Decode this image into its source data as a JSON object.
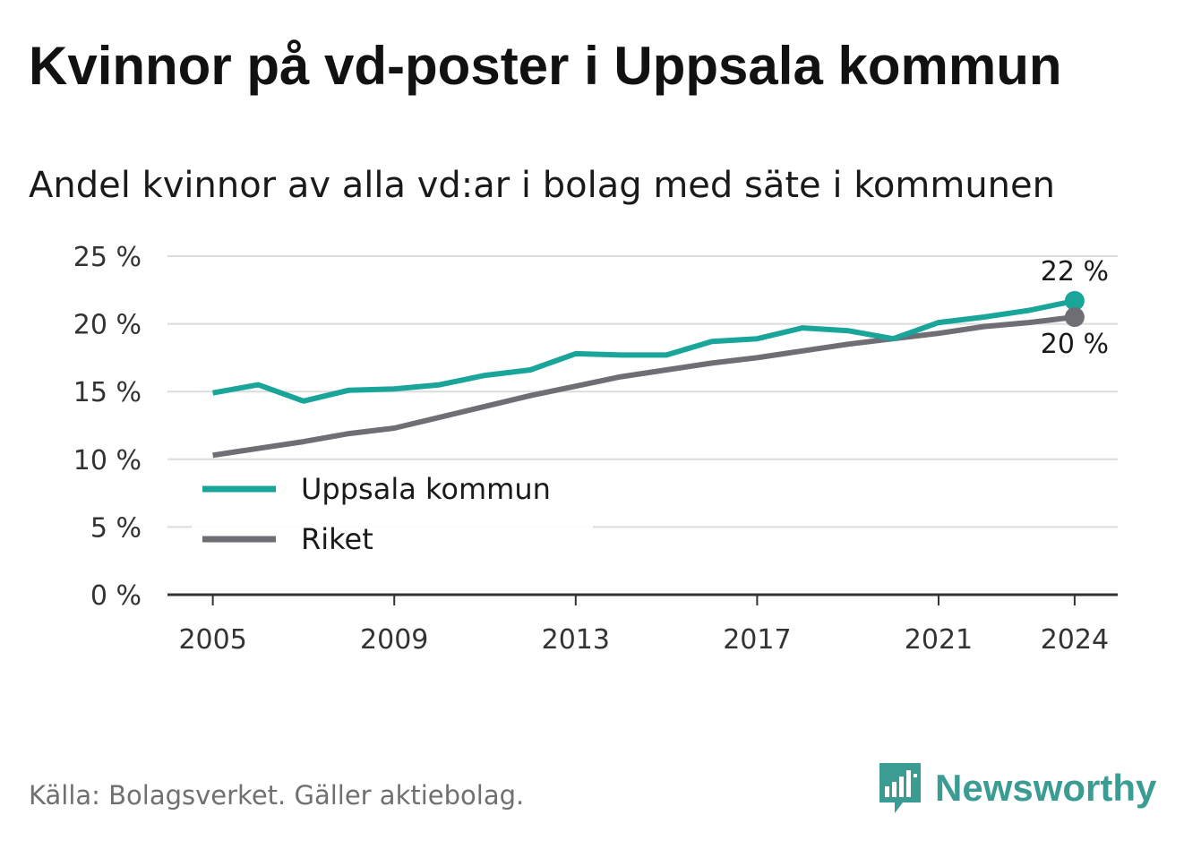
{
  "title": "Kvinnor på vd-poster i Uppsala kommun",
  "subtitle": "Andel kvinnor av alla vd:ar i bolag med säte i kommunen",
  "source": "Källa: Bolagsverket. Gäller aktiebolag.",
  "brand": {
    "name": "Newsworthy",
    "icon": "newsworthy-logo-icon",
    "color": "#3b9c93"
  },
  "chart_data": {
    "type": "line",
    "title": "Kvinnor på vd-poster i Uppsala kommun",
    "subtitle": "Andel kvinnor av alla vd:ar i bolag med säte i kommunen",
    "xlabel": "",
    "ylabel": "",
    "x": [
      2005,
      2006,
      2007,
      2008,
      2009,
      2010,
      2011,
      2012,
      2013,
      2014,
      2015,
      2016,
      2017,
      2018,
      2019,
      2020,
      2021,
      2022,
      2023,
      2024
    ],
    "x_ticks": [
      {
        "value": 2005,
        "label": "2005"
      },
      {
        "value": 2009,
        "label": "2009"
      },
      {
        "value": 2013,
        "label": "2013"
      },
      {
        "value": 2017,
        "label": "2017"
      },
      {
        "value": 2021,
        "label": "2021"
      },
      {
        "value": 2024,
        "label": "2024"
      }
    ],
    "x_range": [
      2004.0,
      2024.95
    ],
    "ylim": [
      0,
      25
    ],
    "y_ticks": [
      {
        "value": 0,
        "label": "0 %"
      },
      {
        "value": 5,
        "label": "5 %"
      },
      {
        "value": 10,
        "label": "10 %"
      },
      {
        "value": 15,
        "label": "15 %"
      },
      {
        "value": 20,
        "label": "20 %"
      },
      {
        "value": 25,
        "label": "25 %"
      }
    ],
    "grid": true,
    "legend_position": "lower-left",
    "series": [
      {
        "name": "Uppsala kommun",
        "color": "#1aa59a",
        "values": [
          14.9,
          15.5,
          14.3,
          15.1,
          15.2,
          15.5,
          16.2,
          16.6,
          17.8,
          17.7,
          17.7,
          18.7,
          18.9,
          19.7,
          19.5,
          18.9,
          20.1,
          20.5,
          21.0,
          21.7
        ],
        "end_label": "22 %",
        "end_label_side": "above"
      },
      {
        "name": "Riket",
        "color": "#6f6e75",
        "values": [
          10.3,
          10.8,
          11.3,
          11.9,
          12.3,
          13.1,
          13.9,
          14.7,
          15.4,
          16.1,
          16.6,
          17.1,
          17.5,
          18.0,
          18.5,
          18.9,
          19.3,
          19.8,
          20.1,
          20.5
        ],
        "end_label": "20 %",
        "end_label_side": "below"
      }
    ]
  }
}
